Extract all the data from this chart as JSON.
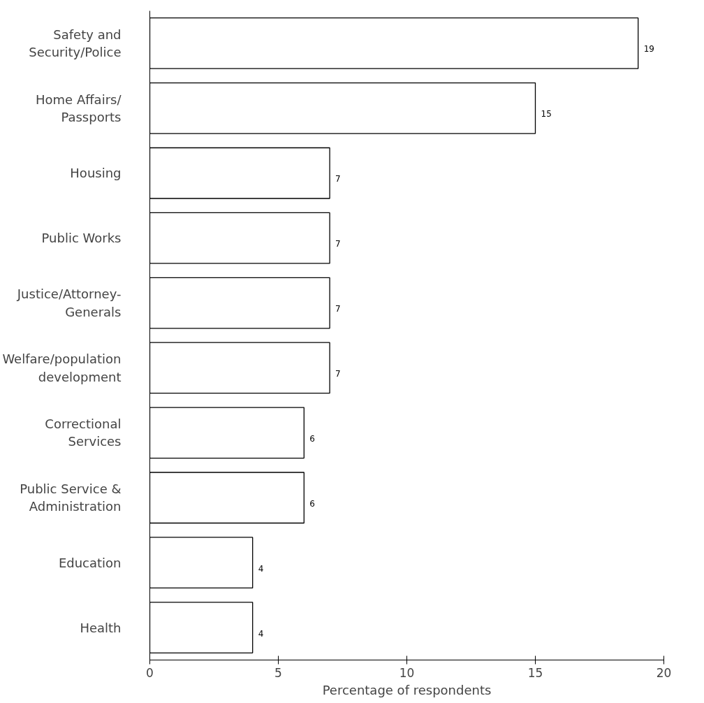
{
  "chart_data": {
    "type": "bar",
    "orientation": "horizontal",
    "xlabel": "Percentage of respondents",
    "categories": [
      "Safety and Security/Police",
      "Home Affairs/ Passports",
      "Housing",
      "Public Works",
      "Justice/Attorney-Generals",
      "Welfare/population development",
      "Correctional Services",
      "Public Service & Administration",
      "Education",
      "Health"
    ],
    "values": [
      19,
      15,
      7,
      7,
      7,
      7,
      6,
      6,
      4,
      4
    ],
    "color": "#ffffff",
    "data_labels": true,
    "xlim": [
      0,
      20
    ],
    "xticks": [
      0,
      5,
      10,
      15,
      20
    ],
    "grid": false
  }
}
